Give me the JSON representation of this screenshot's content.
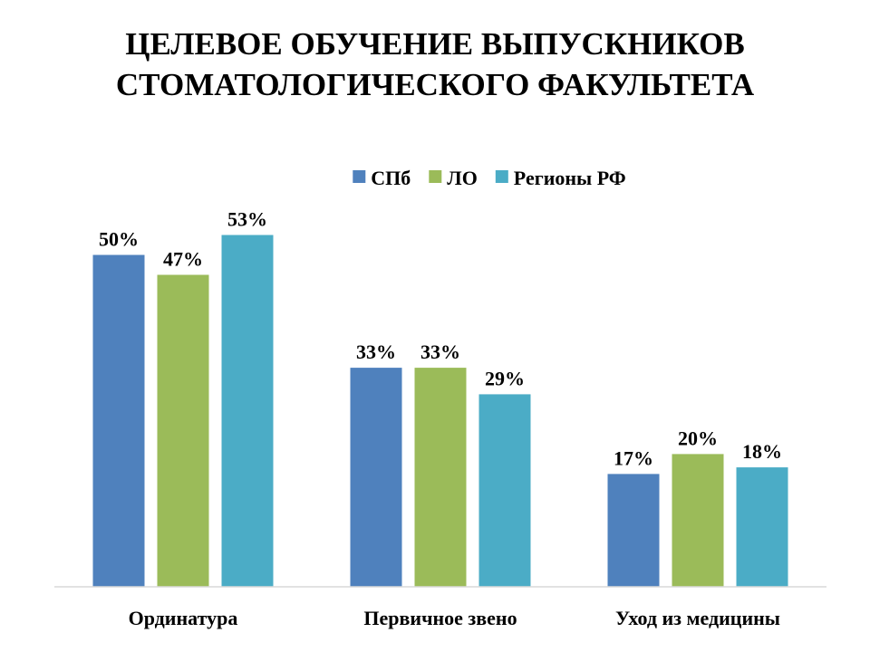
{
  "chart_data": {
    "type": "bar",
    "title_lines": [
      "ЦЕЛЕВОЕ ОБУЧЕНИЕ ВЫПУСКНИКОВ",
      "СТОМАТОЛОГИЧЕСКОГО ФАКУЛЬТЕТА"
    ],
    "categories": [
      "Ординатура",
      "Первичное звено",
      "Уход из медицины"
    ],
    "series": [
      {
        "name": "СПб",
        "color": "#4f81bd",
        "values": [
          50,
          33,
          17
        ],
        "labels": [
          "50%",
          "33%",
          "17%"
        ]
      },
      {
        "name": "ЛО",
        "color": "#9bbb59",
        "values": [
          47,
          33,
          20
        ],
        "labels": [
          "47%",
          "33%",
          "20%"
        ]
      },
      {
        "name": "Регионы РФ",
        "color": "#4bacc6",
        "values": [
          53,
          29,
          18
        ],
        "labels": [
          "53%",
          "29%",
          "18%"
        ]
      }
    ],
    "value_unit": "%",
    "ylim": [
      0,
      60
    ],
    "legend_position": "top-center",
    "grid": false,
    "axis_line_color": "#d9d9d9"
  }
}
